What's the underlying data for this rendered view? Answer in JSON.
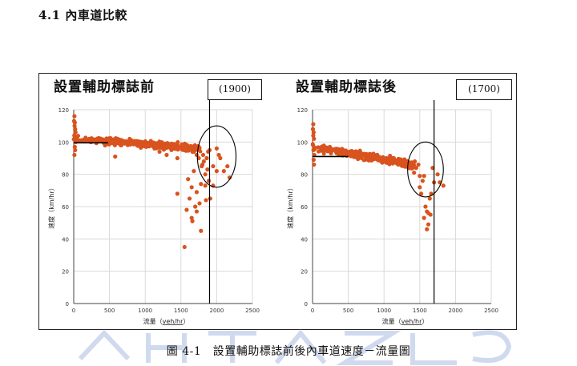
{
  "section": {
    "heading": "4.1 內車道比較"
  },
  "caption": "圖 4-1　設置輔助標誌前後內車道速度－流量圖",
  "colors": {
    "point": "#d9531e",
    "grid": "#d9d9d9",
    "axis": "#444444",
    "line": "#000000",
    "watermark": "#c8d4ec"
  },
  "chart_data": [
    {
      "type": "scatter",
      "title": "設置輔助標誌前",
      "capacity_label": "(1900)",
      "capacity_x": 1900,
      "xlabel_prefix": "流量（",
      "xlabel_unit": "veh/hr",
      "xlabel_suffix": "）",
      "ylabel": "速度（km/hr）",
      "xlim": [
        0,
        2500
      ],
      "ylim": [
        0,
        120
      ],
      "xticks": [
        "0",
        "500",
        "1000",
        "1500",
        "2000",
        "2500"
      ],
      "yticks": [
        "0",
        "20",
        "40",
        "60",
        "80",
        "100",
        "120"
      ],
      "reference_line": {
        "x": [
          0,
          480
        ],
        "y": 99.5
      },
      "ellipse": {
        "cx": 2000,
        "cy": 91,
        "rx": 270,
        "ry": 19
      },
      "band": {
        "x_start": 0,
        "x_end": 1770,
        "y_start": 102,
        "y_end": 96,
        "spread": 2.2
      },
      "points": [
        [
          5,
          113
        ],
        [
          10,
          116
        ],
        [
          15,
          112
        ],
        [
          20,
          108
        ],
        [
          8,
          104
        ],
        [
          12,
          110
        ],
        [
          25,
          106
        ],
        [
          30,
          100
        ],
        [
          15,
          97
        ],
        [
          20,
          95
        ],
        [
          10,
          92
        ],
        [
          35,
          103
        ],
        [
          1450,
          68
        ],
        [
          1450,
          90
        ],
        [
          1550,
          35
        ],
        [
          1580,
          58
        ],
        [
          1600,
          77
        ],
        [
          1620,
          65
        ],
        [
          1650,
          72
        ],
        [
          1680,
          82
        ],
        [
          1650,
          53
        ],
        [
          1660,
          51
        ],
        [
          1700,
          60
        ],
        [
          1720,
          57
        ],
        [
          1720,
          69
        ],
        [
          1760,
          62
        ],
        [
          1780,
          45
        ],
        [
          1780,
          74
        ],
        [
          1790,
          85
        ],
        [
          1800,
          86
        ],
        [
          1810,
          92
        ],
        [
          1820,
          88
        ],
        [
          1840,
          80
        ],
        [
          1840,
          73
        ],
        [
          1850,
          64
        ],
        [
          1860,
          90
        ],
        [
          1870,
          83
        ],
        [
          1880,
          94
        ],
        [
          1890,
          76
        ],
        [
          1900,
          95
        ],
        [
          1910,
          65
        ],
        [
          1950,
          73
        ],
        [
          1950,
          85
        ],
        [
          2000,
          96
        ],
        [
          2000,
          82
        ],
        [
          2030,
          92
        ],
        [
          2050,
          90
        ],
        [
          2100,
          82
        ],
        [
          2150,
          85
        ],
        [
          2180,
          78
        ],
        [
          1300,
          92
        ],
        [
          1200,
          94
        ],
        [
          1130,
          96
        ],
        [
          580,
          91
        ],
        [
          1680,
          94
        ],
        [
          1720,
          92
        ],
        [
          1750,
          90
        ]
      ]
    },
    {
      "type": "scatter",
      "title": "設置輔助標誌後",
      "capacity_label": "(1700)",
      "capacity_x": 1700,
      "xlabel_prefix": "流量（",
      "xlabel_unit": "veh/hr",
      "xlabel_suffix": "）",
      "ylabel": "速度（km/hr）",
      "xlim": [
        0,
        2500
      ],
      "ylim": [
        0,
        120
      ],
      "xticks": [
        "0",
        "500",
        "1000",
        "1500",
        "2000",
        "2500"
      ],
      "yticks": [
        "0",
        "20",
        "40",
        "60",
        "80",
        "100",
        "120"
      ],
      "reference_line": {
        "x": [
          0,
          500
        ],
        "y": 91
      },
      "ellipse": {
        "cx": 1580,
        "cy": 83,
        "rx": 250,
        "ry": 17
      },
      "band": {
        "x_start": 0,
        "x_end": 1420,
        "y_start": 97,
        "y_end": 86,
        "spread": 2.3
      },
      "points": [
        [
          5,
          108
        ],
        [
          10,
          111
        ],
        [
          15,
          106
        ],
        [
          20,
          102
        ],
        [
          8,
          98
        ],
        [
          12,
          95
        ],
        [
          25,
          92
        ],
        [
          15,
          89
        ],
        [
          20,
          86
        ],
        [
          10,
          104
        ],
        [
          1400,
          84
        ],
        [
          1420,
          81
        ],
        [
          1430,
          88
        ],
        [
          1450,
          84
        ],
        [
          1480,
          86
        ],
        [
          1500,
          79
        ],
        [
          1500,
          72
        ],
        [
          1520,
          68
        ],
        [
          1540,
          76
        ],
        [
          1560,
          79
        ],
        [
          1560,
          53
        ],
        [
          1580,
          60
        ],
        [
          1600,
          46
        ],
        [
          1600,
          57
        ],
        [
          1620,
          49
        ],
        [
          1620,
          56
        ],
        [
          1640,
          65
        ],
        [
          1650,
          55
        ],
        [
          1660,
          68
        ],
        [
          1680,
          84
        ],
        [
          1700,
          75
        ],
        [
          1750,
          80
        ],
        [
          1780,
          75
        ],
        [
          1830,
          73
        ],
        [
          1300,
          85
        ],
        [
          1200,
          88
        ]
      ]
    }
  ]
}
